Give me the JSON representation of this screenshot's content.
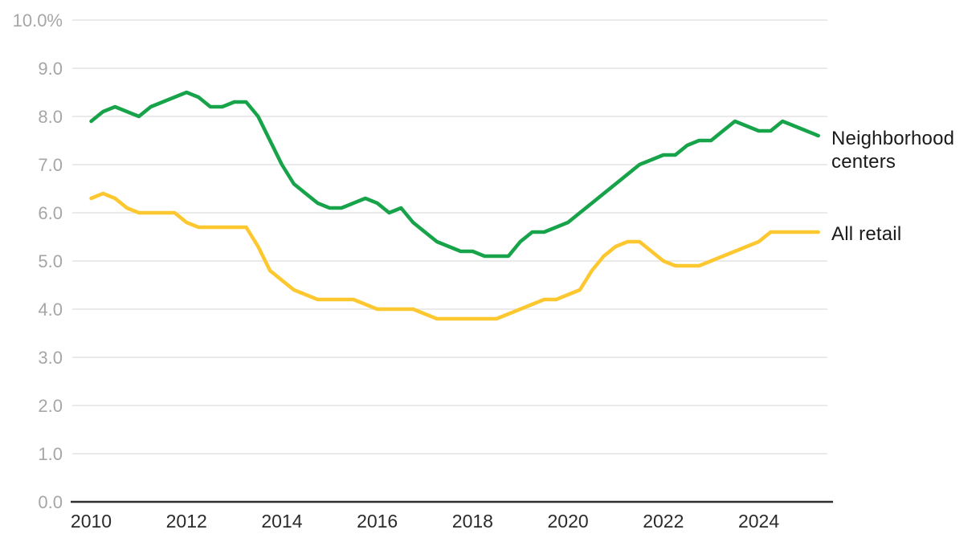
{
  "chart_data": {
    "type": "line",
    "title": "",
    "unit": "percent",
    "frequency": "quarterly",
    "start_period": "2010-Q1",
    "end_period": "2025-Q2",
    "ylim": [
      0,
      10
    ],
    "grid": "horizontal",
    "legend_position": "right-of-line-ends",
    "y_tick_labels": [
      "0.0",
      "1.0",
      "2.0",
      "3.0",
      "4.0",
      "5.0",
      "6.0",
      "7.0",
      "8.0",
      "9.0",
      "10.0%"
    ],
    "x_tick_labels": [
      "2010",
      "2012",
      "2014",
      "2016",
      "2018",
      "2020",
      "2022",
      "2024"
    ],
    "axis_color": "#2e2e2e",
    "gridline_color": "#e4e4e4",
    "y_label_color": "#a6a6a6",
    "x_label_color": "#2b2b2b",
    "series": [
      {
        "name": "Neighborhood centers",
        "color": "#17a34a",
        "values": [
          7.9,
          8.1,
          8.2,
          8.1,
          8.0,
          8.2,
          8.3,
          8.4,
          8.5,
          8.4,
          8.2,
          8.2,
          8.3,
          8.3,
          8.0,
          7.5,
          7.0,
          6.6,
          6.4,
          6.2,
          6.1,
          6.1,
          6.2,
          6.3,
          6.2,
          6.0,
          6.1,
          5.8,
          5.6,
          5.4,
          5.3,
          5.2,
          5.2,
          5.1,
          5.1,
          5.1,
          5.4,
          5.6,
          5.6,
          5.7,
          5.8,
          6.0,
          6.2,
          6.4,
          6.6,
          6.8,
          7.0,
          7.1,
          7.2,
          7.2,
          7.4,
          7.5,
          7.5,
          7.7,
          7.9,
          7.8,
          7.7,
          7.7,
          7.9,
          7.8,
          7.7,
          7.6
        ]
      },
      {
        "name": "All retail",
        "color": "#fdc72f",
        "values": [
          6.3,
          6.4,
          6.3,
          6.1,
          6.0,
          6.0,
          6.0,
          6.0,
          5.8,
          5.7,
          5.7,
          5.7,
          5.7,
          5.7,
          5.3,
          4.8,
          4.6,
          4.4,
          4.3,
          4.2,
          4.2,
          4.2,
          4.2,
          4.1,
          4.0,
          4.0,
          4.0,
          4.0,
          3.9,
          3.8,
          3.8,
          3.8,
          3.8,
          3.8,
          3.8,
          3.9,
          4.0,
          4.1,
          4.2,
          4.2,
          4.3,
          4.4,
          4.8,
          5.1,
          5.3,
          5.4,
          5.4,
          5.2,
          5.0,
          4.9,
          4.9,
          4.9,
          5.0,
          5.1,
          5.2,
          5.3,
          5.4,
          5.6,
          5.6,
          5.6,
          5.6,
          5.6
        ]
      }
    ]
  }
}
